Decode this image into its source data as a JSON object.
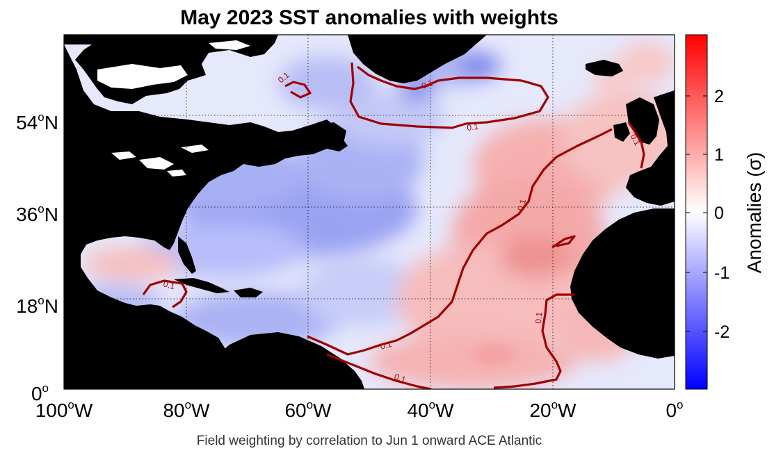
{
  "map": {
    "title": "May 2023 SST anomalies with weights",
    "caption": "Field weighting by correlation to Jun 1 onward ACE Atlantic",
    "lon_ticks": [
      {
        "value": "100",
        "suffix": "W"
      },
      {
        "value": "80",
        "suffix": "W"
      },
      {
        "value": "60",
        "suffix": "W"
      },
      {
        "value": "40",
        "suffix": "W"
      },
      {
        "value": "20",
        "suffix": "W"
      },
      {
        "value": "0",
        "suffix": ""
      }
    ],
    "lat_ticks": [
      {
        "value": "54",
        "suffix": "N"
      },
      {
        "value": "36",
        "suffix": "N"
      },
      {
        "value": "18",
        "suffix": "N"
      },
      {
        "value": "0",
        "suffix": ""
      }
    ],
    "degree_mark": "o",
    "contour_label": "0.1",
    "colorbar": {
      "ticks": [
        "2",
        "1",
        "0",
        "-1",
        "-2"
      ],
      "label": "Anomalies (σ)",
      "range": [
        -2.9,
        2.9
      ],
      "colormap": [
        "#0000ff",
        "#ffffff",
        "#ff0000"
      ]
    },
    "colors": {
      "land": "#000000",
      "contour": "#a00000",
      "warm": "#f08080",
      "cool": "#8a96f0"
    }
  }
}
